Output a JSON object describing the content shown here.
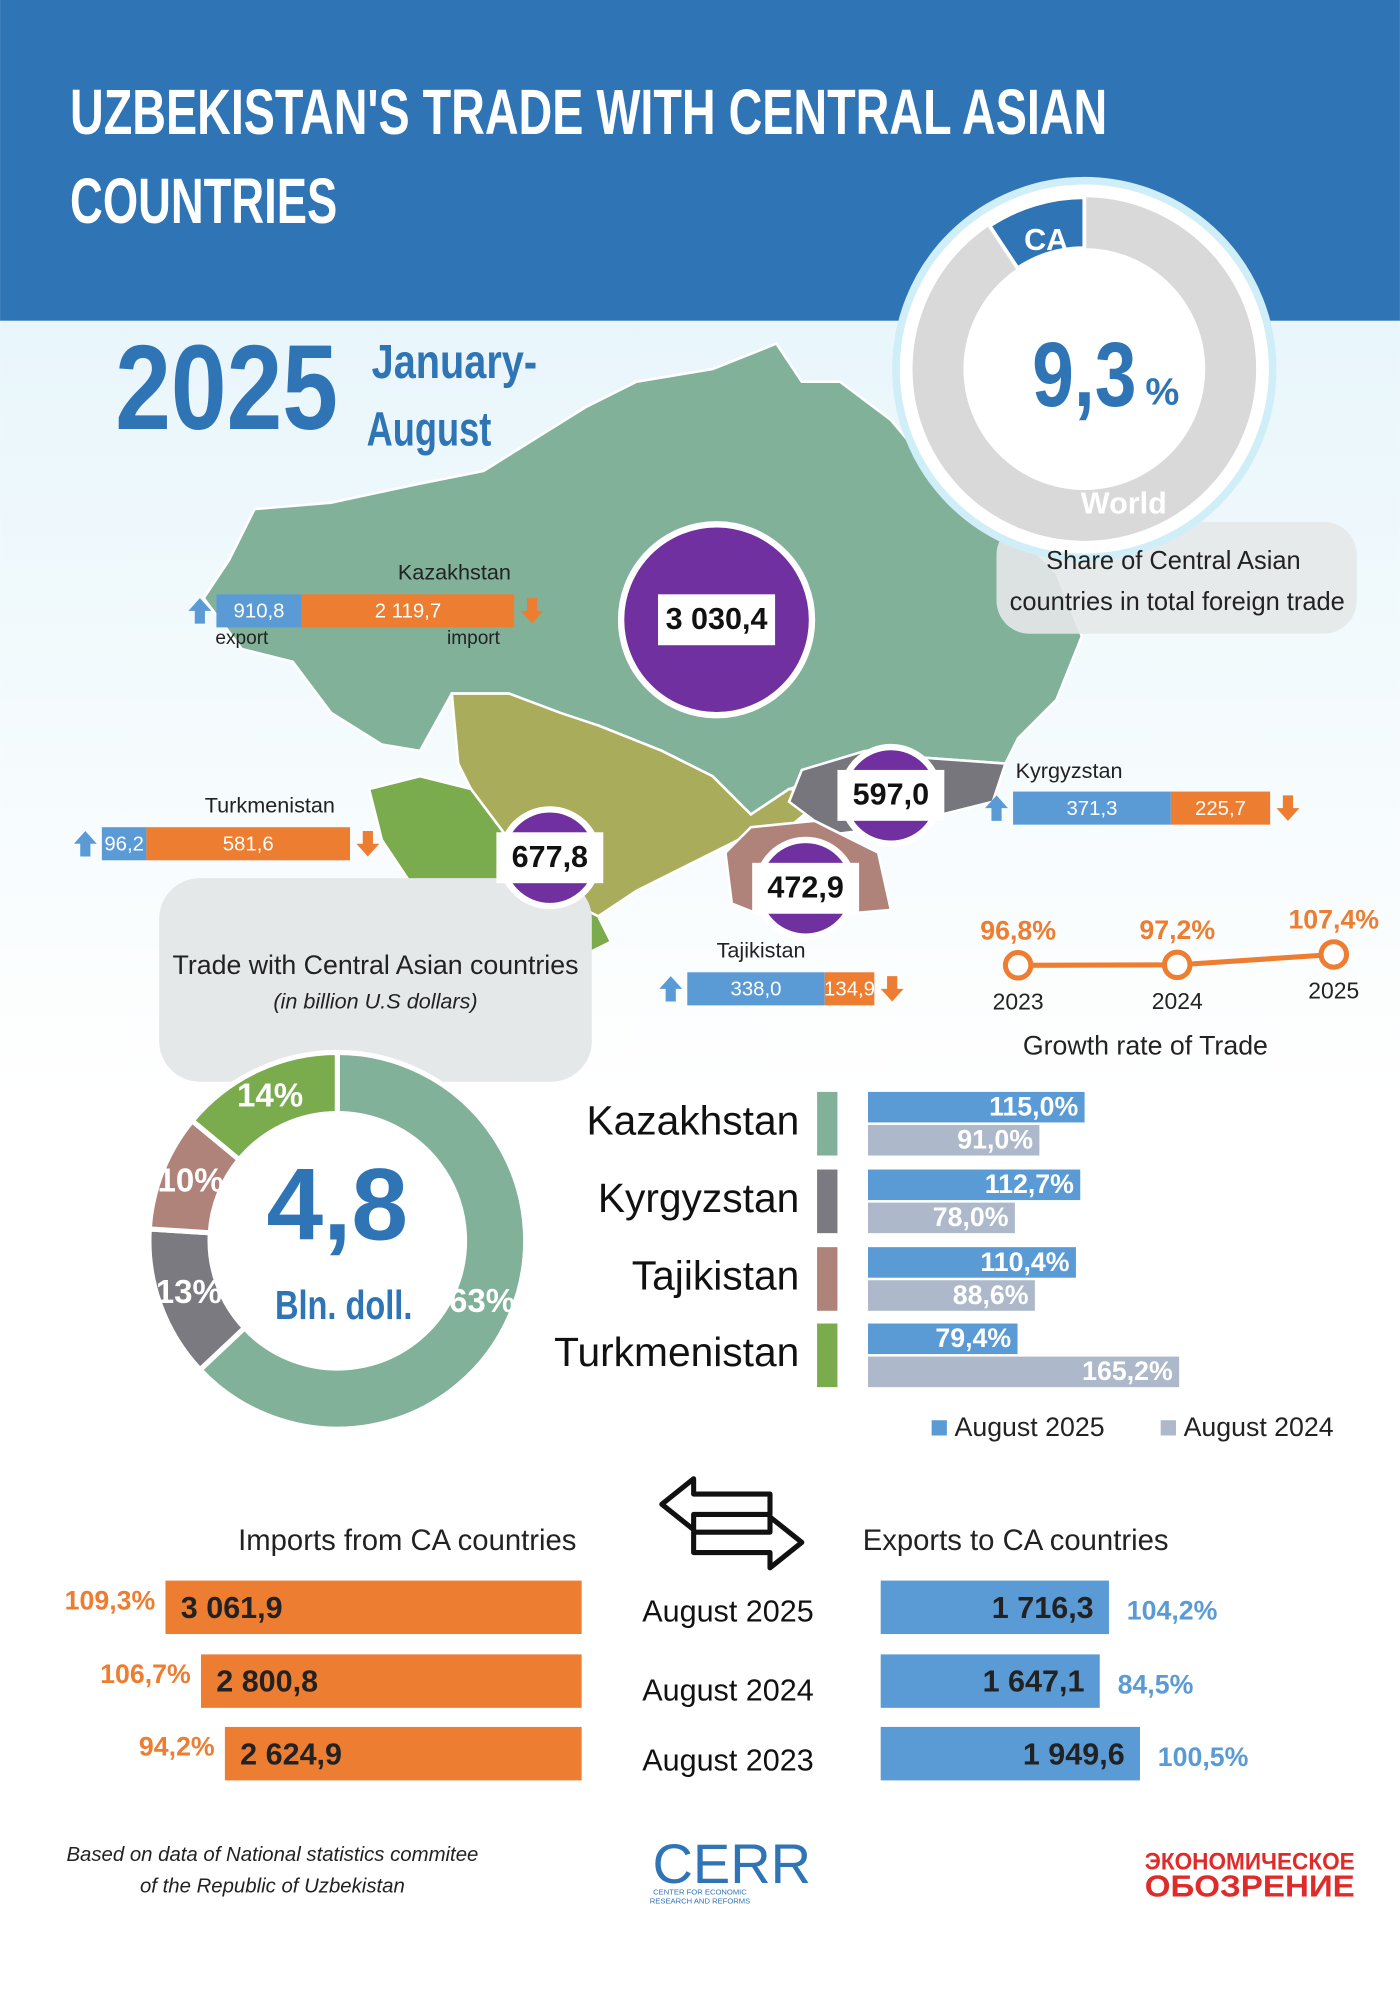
{
  "title": [
    "UZBEKISTAN'S TRADE WITH CENTRAL ASIAN",
    "COUNTRIES"
  ],
  "year": "2025",
  "period": [
    "January-",
    "August"
  ],
  "share": {
    "ca_label": "CA",
    "world_label": "World",
    "value": 9.3,
    "value_label": "9,3",
    "unit": "%",
    "caption": [
      "Share of Central Asian",
      "countries in total foreign trade"
    ]
  },
  "map": {
    "caption": "Trade with Central Asian countries",
    "note": "(in billion U.S dollars)",
    "export_label": "export",
    "import_label": "import",
    "countries": [
      {
        "name": "Kazakhstan",
        "export": "910,8",
        "import": "2 119,7",
        "total": "3 030,4"
      },
      {
        "name": "Turkmenistan",
        "export": "96,2",
        "import": "581,6",
        "total": "677,8"
      },
      {
        "name": "Kyrgyzstan",
        "export": "371,3",
        "import": "225,7",
        "total": "597,0"
      },
      {
        "name": "Tajikistan",
        "export": "338,0",
        "import": "134,9",
        "total": "472,9"
      }
    ]
  },
  "growth": {
    "title": "Growth rate of Trade",
    "years": [
      "2023",
      "2024",
      "2025"
    ],
    "values": [
      96.8,
      97.2,
      107.4
    ],
    "value_labels": [
      "96,8%",
      "97,2%",
      "107,4%"
    ],
    "color": "#ed7d31"
  },
  "donut": {
    "center_value": "4,8",
    "center_unit": "Bln. doll.",
    "values": [
      63,
      13,
      10,
      14
    ],
    "value_labels": [
      "63%",
      "13%",
      "10%",
      "14%"
    ],
    "colors": [
      "#82b19a",
      "#7a7a80",
      "#b0837a",
      "#7aab4d"
    ]
  },
  "bars": {
    "categories": [
      "Kazakhstan",
      "Kyrgyzstan",
      "Tajikistan",
      "Turkmenistan"
    ],
    "colors": [
      "#82b19a",
      "#7a7a80",
      "#b0837a",
      "#7aab4d"
    ],
    "series": [
      {
        "name": "August 2025",
        "color": "#5b9bd5",
        "values": [
          115.0,
          112.7,
          110.4,
          79.4
        ],
        "value_labels": [
          "115,0%",
          "112,7%",
          "110,4%",
          "79,4%"
        ]
      },
      {
        "name": "August 2024",
        "color": "#adb9ca",
        "values": [
          91.0,
          78.0,
          88.6,
          165.2
        ],
        "value_labels": [
          "91,0%",
          "78,0%",
          "88,6%",
          "165,2%"
        ]
      }
    ]
  },
  "trade": {
    "periods": [
      "August 2025",
      "August 2024",
      "August 2023"
    ],
    "imports": {
      "title": "Imports from CA countries",
      "color": "#ed7d31",
      "values": [
        3061.9,
        2800.8,
        2624.9
      ],
      "value_labels": [
        "3 061,9",
        "2 800,8",
        "2 624,9"
      ],
      "growth_labels": [
        "109,3%",
        "106,7%",
        "94,2%"
      ]
    },
    "exports": {
      "title": "Exports to CA countries",
      "color": "#5b9bd5",
      "values": [
        1716.3,
        1647.1,
        1949.6
      ],
      "value_labels": [
        "1 716,3",
        "1 647,1",
        "1 949,6"
      ],
      "growth_labels": [
        "104,2%",
        "84,5%",
        "100,5%"
      ]
    }
  },
  "footer": {
    "source": [
      "Based on data of National statistics commitee",
      "of the Republic of Uzbekistan"
    ],
    "cerr": "CERR",
    "cerr_sub": [
      "CENTER FOR ECONOMIC",
      "RESEARCH AND REFORMS"
    ],
    "partner": [
      "ЭКОНОМИЧЕСКОЕ",
      "ОБОЗРЕНИЕ"
    ]
  }
}
